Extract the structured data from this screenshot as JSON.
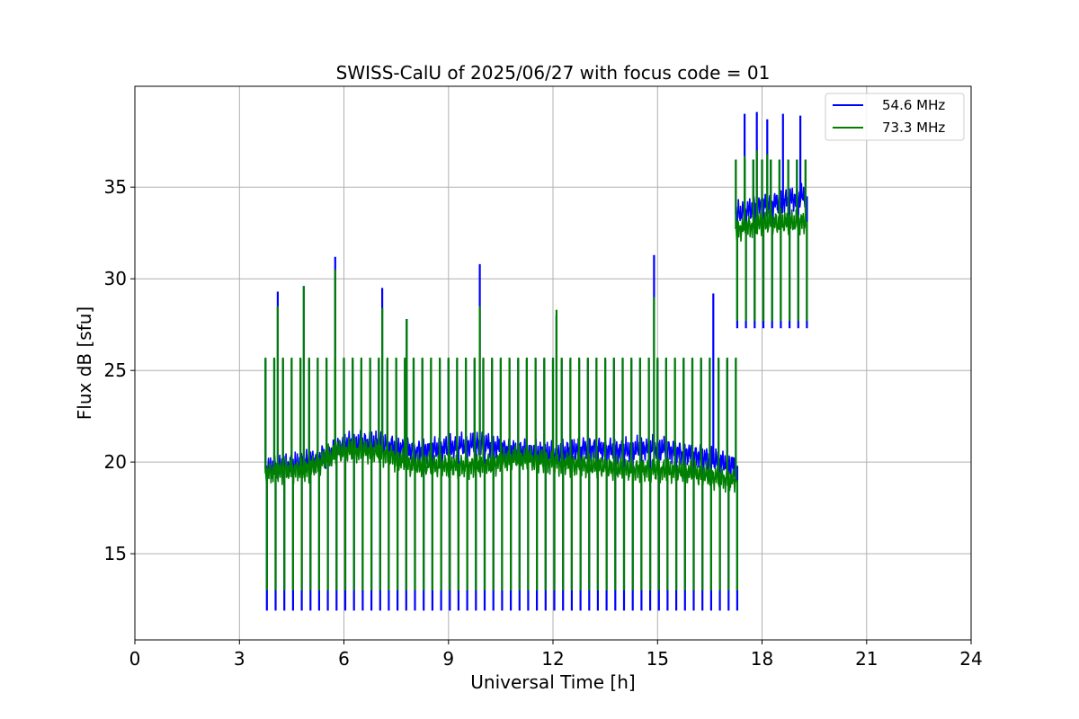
{
  "chart_data": {
    "type": "line",
    "title": "SWISS-CalU of 2025/06/27 with focus code = 01",
    "xlabel": "Universal Time [h]",
    "ylabel": "Flux dB [sfu]",
    "xlim": [
      0,
      24
    ],
    "ylim": [
      10.3,
      40.5
    ],
    "xticks": [
      0,
      3,
      6,
      9,
      12,
      15,
      18,
      21,
      24
    ],
    "yticks": [
      15,
      20,
      25,
      30,
      35
    ],
    "grid": true,
    "legend_position": "top-right",
    "calibration_period_h": 0.25,
    "series": [
      {
        "name": "54.6 MHz",
        "color": "#0000ff",
        "segments": [
          {
            "start": 3.75,
            "end": 17.25,
            "baseline": [
              [
                3.75,
                19.6
              ],
              [
                4.5,
                19.8
              ],
              [
                5.0,
                20.0
              ],
              [
                5.5,
                20.4
              ],
              [
                6.0,
                21.0
              ],
              [
                7.0,
                21.0
              ],
              [
                8.0,
                20.6
              ],
              [
                9.0,
                20.8
              ],
              [
                10.0,
                21.0
              ],
              [
                11.0,
                20.6
              ],
              [
                12.0,
                20.4
              ],
              [
                13.0,
                20.8
              ],
              [
                14.0,
                20.6
              ],
              [
                15.0,
                20.8
              ],
              [
                16.0,
                20.4
              ],
              [
                17.25,
                19.8
              ]
            ],
            "cal_high": 25.6,
            "cal_low": 11.9
          },
          {
            "start": 17.25,
            "end": 19.25,
            "baseline": [
              [
                17.25,
                33.5
              ],
              [
                18.0,
                34.0
              ],
              [
                19.25,
                34.5
              ]
            ],
            "cal_high": 36.5,
            "cal_low": 27.3
          }
        ],
        "peaks": [
          [
            4.1,
            29.3
          ],
          [
            4.85,
            29.6
          ],
          [
            5.75,
            31.2
          ],
          [
            7.1,
            29.5
          ],
          [
            7.8,
            27.8
          ],
          [
            9.9,
            30.8
          ],
          [
            12.1,
            28.0
          ],
          [
            14.9,
            31.3
          ],
          [
            16.6,
            29.2
          ],
          [
            17.5,
            39.0
          ],
          [
            17.85,
            39.1
          ],
          [
            18.15,
            38.7
          ],
          [
            18.6,
            39.0
          ],
          [
            19.1,
            38.9
          ]
        ]
      },
      {
        "name": "73.3 MHz",
        "color": "#008000",
        "segments": [
          {
            "start": 3.75,
            "end": 17.25,
            "baseline": [
              [
                3.75,
                19.4
              ],
              [
                4.5,
                19.6
              ],
              [
                5.0,
                19.6
              ],
              [
                5.5,
                20.2
              ],
              [
                6.0,
                20.6
              ],
              [
                7.0,
                20.6
              ],
              [
                8.0,
                19.8
              ],
              [
                9.0,
                19.8
              ],
              [
                10.0,
                19.8
              ],
              [
                11.0,
                20.2
              ],
              [
                12.0,
                20.0
              ],
              [
                13.0,
                19.8
              ],
              [
                14.0,
                19.6
              ],
              [
                15.0,
                19.6
              ],
              [
                16.0,
                19.4
              ],
              [
                17.25,
                19.0
              ]
            ],
            "cal_high": 25.7,
            "cal_low": 13.0
          },
          {
            "start": 17.25,
            "end": 19.25,
            "baseline": [
              [
                17.25,
                32.7
              ],
              [
                18.0,
                33.0
              ],
              [
                19.25,
                33.1
              ]
            ],
            "cal_high": 36.5,
            "cal_low": 27.7
          }
        ],
        "peaks": [
          [
            4.1,
            28.5
          ],
          [
            4.85,
            29.6
          ],
          [
            5.75,
            30.5
          ],
          [
            7.1,
            28.4
          ],
          [
            7.8,
            27.8
          ],
          [
            9.9,
            28.5
          ],
          [
            12.1,
            28.3
          ],
          [
            14.9,
            29.0
          ],
          [
            17.5,
            36.7
          ],
          [
            17.85,
            37.0
          ],
          [
            18.15,
            36.8
          ]
        ]
      }
    ]
  }
}
